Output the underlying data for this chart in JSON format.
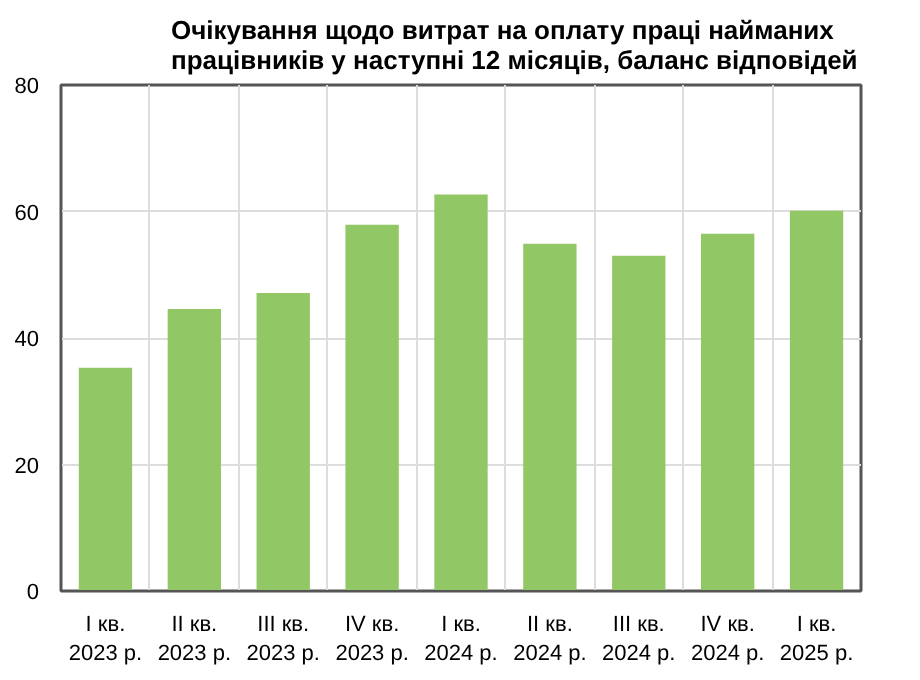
{
  "chart_data": {
    "type": "bar",
    "title": "Очікування щодо витрат на оплату праці найманих\nпрацівників у наступні 12 місяців, баланс відповідей",
    "categories": [
      "I кв.\n2023 р.",
      "II кв.\n2023 р.",
      "III кв.\n2023 р.",
      "IV кв.\n2023 р.",
      "I кв.\n2024 р.",
      "II кв.\n2024 р.",
      "III кв.\n2024 р.",
      "IV кв.\n2024 р.",
      "I кв.\n2025 р."
    ],
    "values": [
      35.3,
      44.6,
      47.1,
      57.9,
      62.7,
      54.9,
      53.0,
      56.5,
      60.1
    ],
    "color": "#92c765",
    "ylim": [
      0,
      80
    ],
    "yticks": [
      0,
      20,
      40,
      60,
      80
    ],
    "grid": true
  }
}
